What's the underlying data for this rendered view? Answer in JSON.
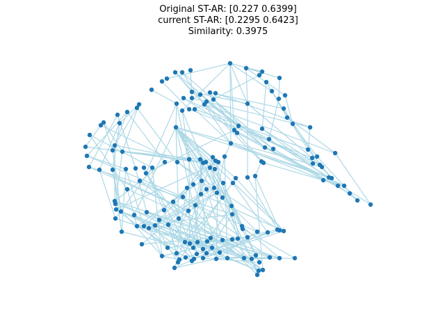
{
  "title_lines": [
    "Original ST-AR: [0.227  0.6399]",
    "current ST-AR: [0.2295 0.6423]",
    "Similarity: 0.3975"
  ],
  "chart_data": {
    "type": "graph",
    "axes_visible": false,
    "node_color": "#1f77b4",
    "edge_color": "#add8e6",
    "node_count": 160
  }
}
